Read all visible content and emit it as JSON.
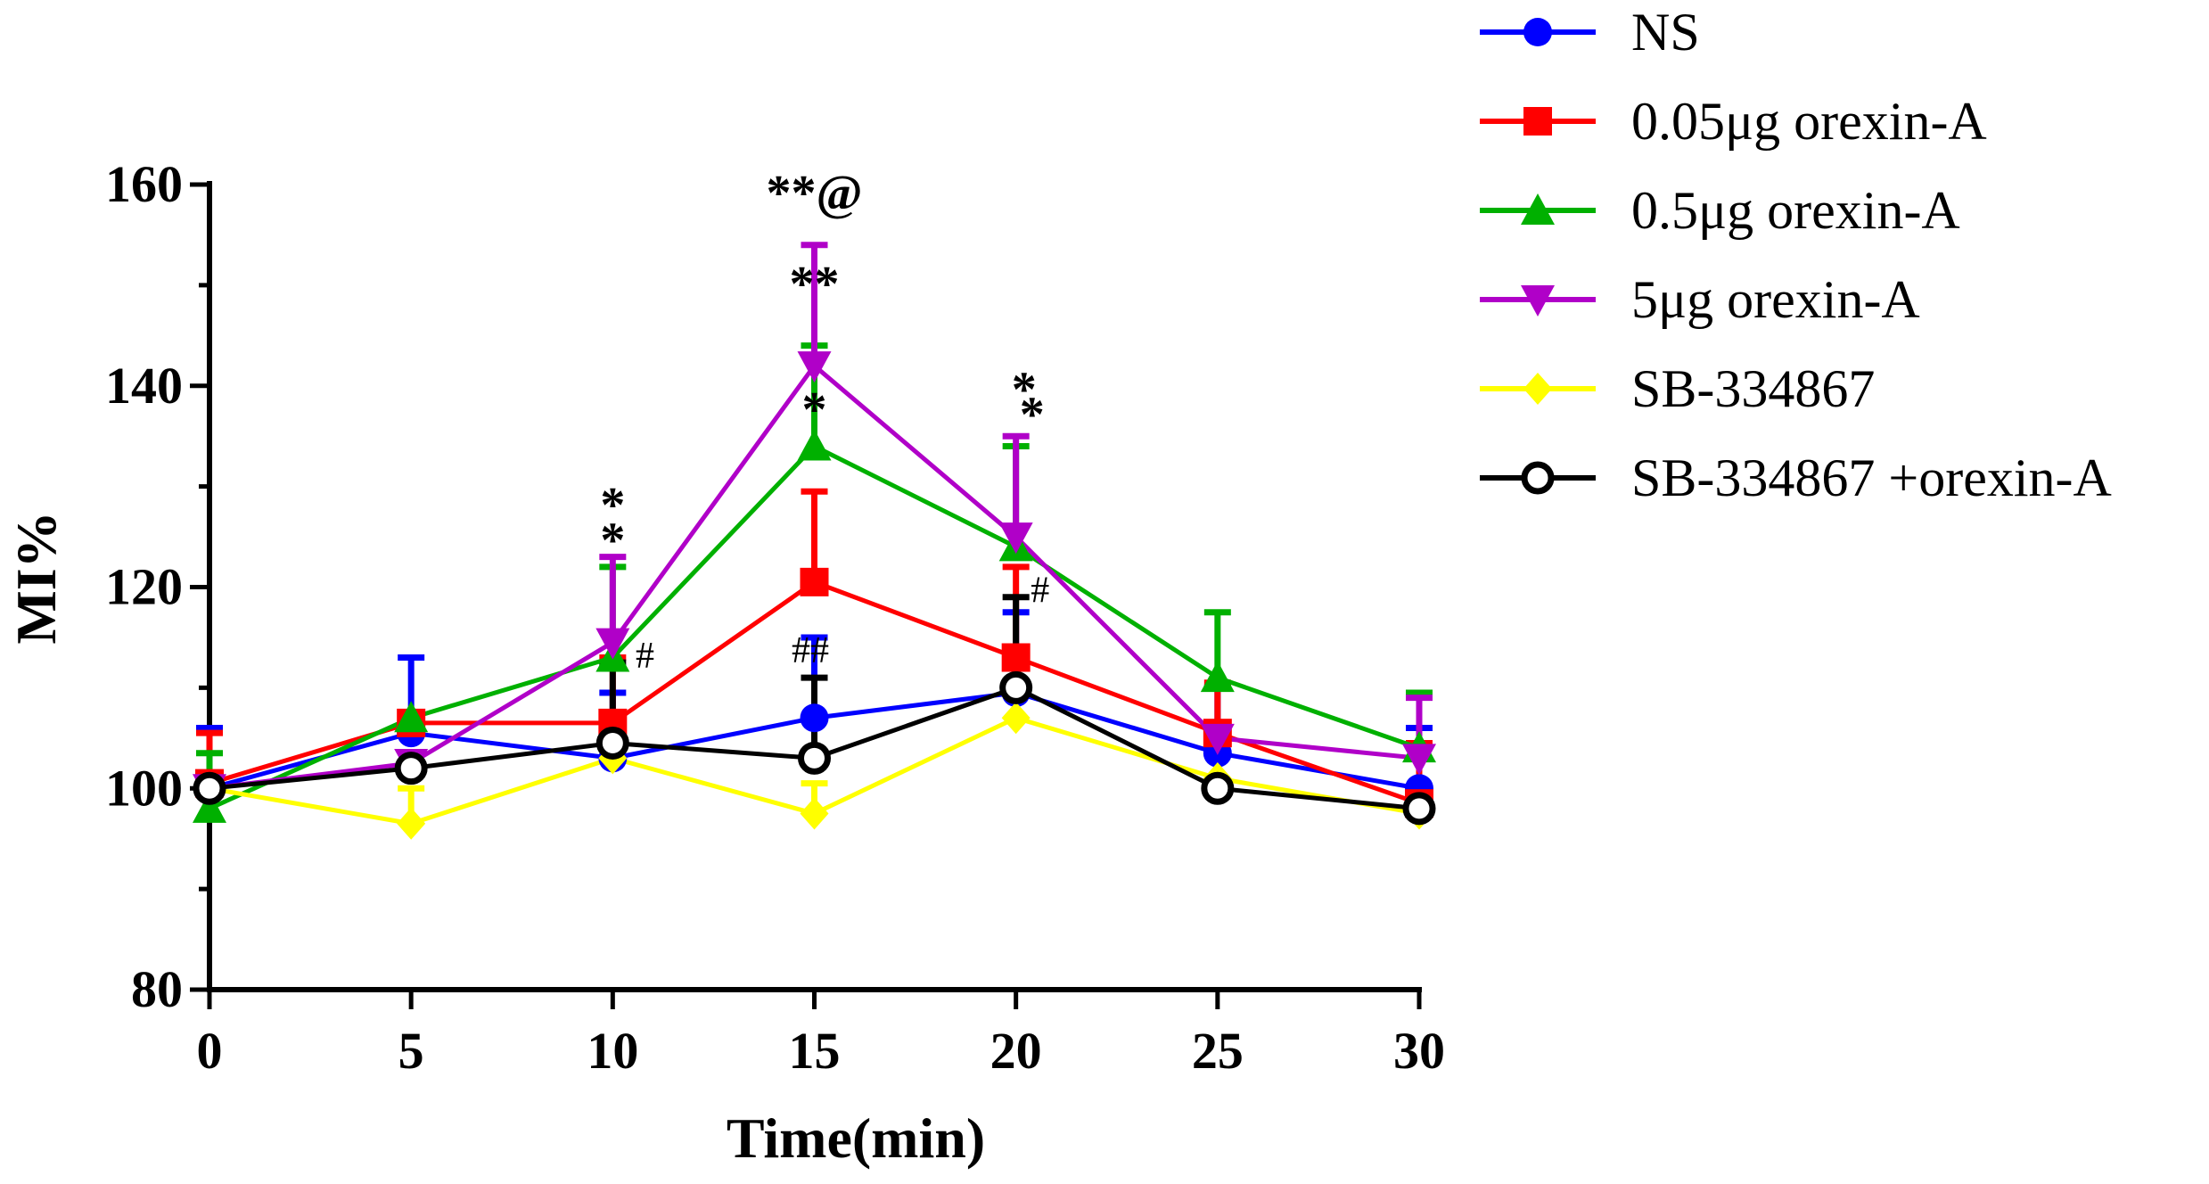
{
  "chart_data": {
    "type": "line",
    "title": "",
    "xlabel": "Time(min)",
    "ylabel": "MI%",
    "x": [
      0,
      5,
      10,
      15,
      20,
      25,
      30
    ],
    "xlim": [
      0,
      30
    ],
    "ylim": [
      80,
      160
    ],
    "xticks": [
      0,
      5,
      10,
      15,
      20,
      25,
      30
    ],
    "yticks": [
      80,
      100,
      120,
      140,
      160
    ],
    "grid": false,
    "legend_position": "right",
    "series": [
      {
        "name": "NS",
        "color": "#0000FF",
        "marker": "circle",
        "values": [
          100,
          105.5,
          103,
          107,
          109.5,
          103.5,
          100
        ],
        "errors": [
          6,
          7.5,
          6.5,
          8,
          8,
          6.5,
          6
        ]
      },
      {
        "name": "0.05μg orexin-A",
        "color": "#FF0000",
        "marker": "square",
        "values": [
          100.5,
          106.5,
          106.5,
          120.5,
          113,
          105.5,
          98.5
        ],
        "errors": [
          5,
          1,
          6.5,
          9,
          9,
          5,
          6
        ]
      },
      {
        "name": "0.5μg orexin-A",
        "color": "#00B000",
        "marker": "triangle-up",
        "values": [
          98,
          107,
          113,
          134,
          124,
          111,
          104
        ],
        "errors": [
          5.5,
          0,
          9,
          10,
          10,
          6.5,
          5.5
        ]
      },
      {
        "name": "5μg orexin-A",
        "color": "#B000C8",
        "marker": "triangle-down",
        "values": [
          100,
          102.5,
          114.5,
          142,
          125,
          105,
          103
        ],
        "errors": [
          0,
          0,
          8.5,
          12,
          10,
          0,
          6
        ]
      },
      {
        "name": "SB-334867",
        "color": "#FFFF00",
        "marker": "diamond",
        "values": [
          100,
          96.5,
          103,
          97.5,
          107,
          101,
          97.5
        ],
        "errors": [
          0,
          3.5,
          0,
          3,
          0,
          0,
          0
        ]
      },
      {
        "name": "SB-334867 +orexin-A",
        "color": "#000000",
        "marker": "open-circle",
        "values": [
          100,
          102,
          104.5,
          103,
          110,
          100,
          98
        ],
        "errors": [
          0,
          0,
          8,
          8,
          9,
          0,
          0
        ]
      }
    ],
    "annotations": [
      {
        "text": "*",
        "x": 10,
        "y": 126.5,
        "style": "star"
      },
      {
        "text": "*",
        "x": 10,
        "y": 123,
        "style": "star"
      },
      {
        "text": "#",
        "x": 10.8,
        "y": 112,
        "style": "hash"
      },
      {
        "text": "**@",
        "x": 15,
        "y": 157.5,
        "style": "star"
      },
      {
        "text": "**",
        "x": 15,
        "y": 148.5,
        "style": "star"
      },
      {
        "text": "*",
        "x": 15,
        "y": 136,
        "style": "star"
      },
      {
        "text": "##",
        "x": 14.9,
        "y": 112.5,
        "style": "hash"
      },
      {
        "text": "*",
        "x": 20.2,
        "y": 138,
        "style": "star"
      },
      {
        "text": "*",
        "x": 20.4,
        "y": 135.5,
        "style": "star"
      },
      {
        "text": "#",
        "x": 20.6,
        "y": 118.5,
        "style": "hash"
      }
    ]
  }
}
